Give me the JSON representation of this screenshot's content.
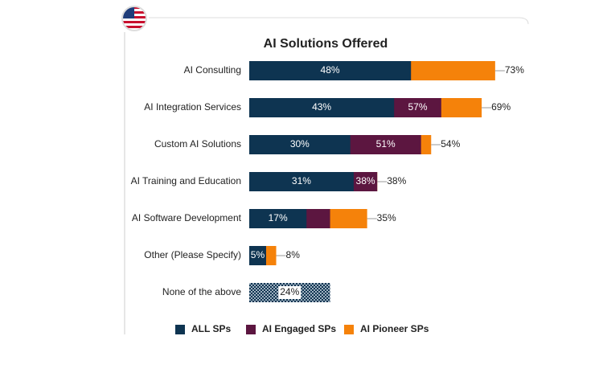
{
  "chart_data": {
    "type": "overlap-bar",
    "orientation": "horizontal",
    "title": "AI Solutions Offered",
    "categories": [
      "AI Consulting",
      "AI Integration Services",
      "Custom AI Solutions",
      "AI Training and Education",
      "AI Software Development",
      "Other (Please Specify)",
      "None of the above"
    ],
    "series": [
      {
        "name": "ALL SPs",
        "color": "#0e3451",
        "values": [
          48,
          43,
          30,
          31,
          17,
          5,
          24
        ],
        "value_labels": [
          "48%",
          "43%",
          "30%",
          "31%",
          "17%",
          "5%",
          "24%"
        ]
      },
      {
        "name": "AI Engaged SPs",
        "color": "#5c1640",
        "values": [
          48,
          57,
          51,
          38,
          24,
          5,
          null
        ],
        "value_labels": [
          null,
          "57%",
          "51%",
          "38%",
          null,
          null,
          null
        ]
      },
      {
        "name": "AI Pioneer SPs",
        "color": "#f5820a",
        "values": [
          73,
          69,
          54,
          38,
          35,
          8,
          null
        ],
        "value_labels": [
          "73%",
          "69%",
          "54%",
          "38%",
          "35%",
          "8%",
          null
        ]
      }
    ],
    "hatch": [
      6
    ],
    "xlim": [
      0,
      100
    ],
    "legend": "bottom"
  }
}
